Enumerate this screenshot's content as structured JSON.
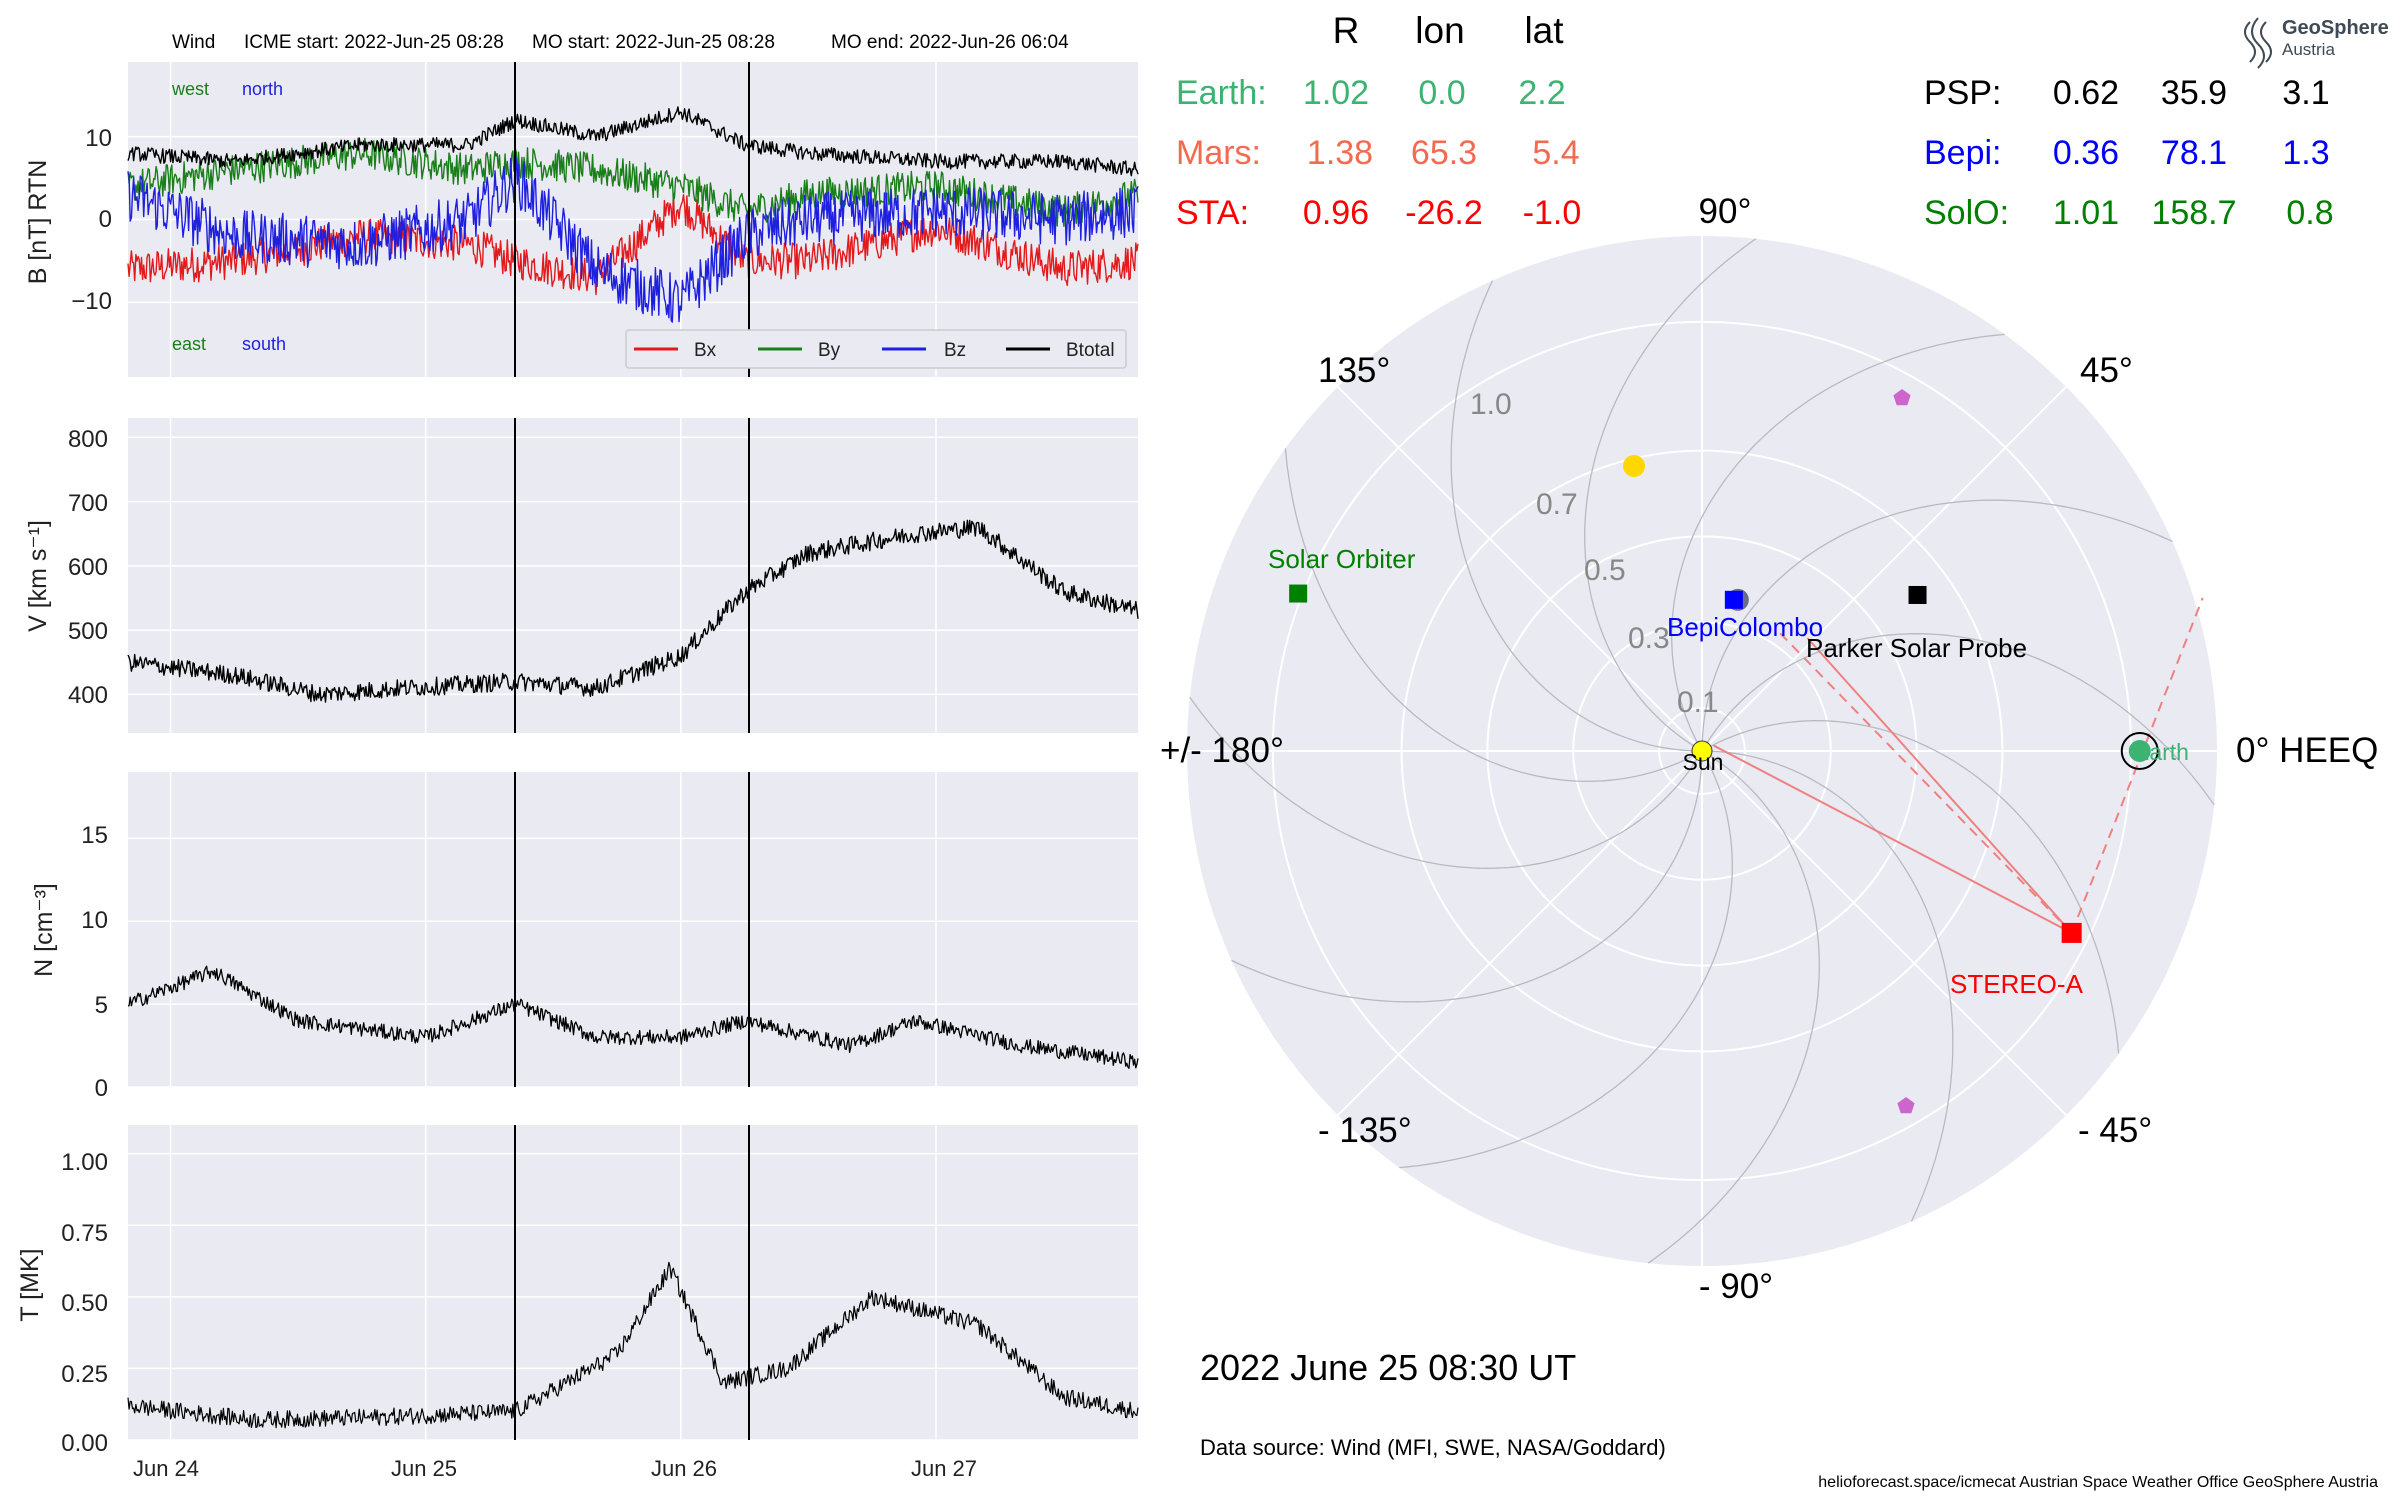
{
  "colors": {
    "panel_bg": "#eaeaf2",
    "grid": "#ffffff",
    "bx": "#e31a1c",
    "by": "#1a7f1a",
    "bz": "#1f1fe0",
    "btotal": "#000000",
    "earth": "#3cb371",
    "mars": "#f26a4f",
    "sta": "#ff0000",
    "psp": "#000000",
    "bepi": "#0000ff",
    "solo": "#008000",
    "sun": "#ffff00",
    "mercury": "#6b6b8a",
    "venus": "#ffd700",
    "marker_pink": "#cc66cc"
  },
  "header": {
    "spacecraft": "Wind",
    "icme_start": "ICME start: 2022-Jun-25 08:28",
    "mo_start": "MO start: 2022-Jun-25 08:28",
    "mo_end": "MO end: 2022-Jun-26 06:04"
  },
  "panels": {
    "b": {
      "ylabel": "B [nT] RTN",
      "west": "west",
      "north": "north",
      "east": "east",
      "south": "south"
    },
    "v": {
      "ylabel": "V [km s⁻¹]"
    },
    "n": {
      "ylabel": "N [cm⁻³]"
    },
    "t": {
      "ylabel": "T [MK]"
    }
  },
  "legend": [
    "Bx",
    "By",
    "Bz",
    "Btotal"
  ],
  "positions": {
    "headers": [
      "R",
      "lon",
      "lat"
    ],
    "rows_left": [
      {
        "name": "Earth:",
        "r": "1.02",
        "lon": "0.0",
        "lat": "2.2"
      },
      {
        "name": "Mars:",
        "r": "1.38",
        "lon": "65.3",
        "lat": "5.4"
      },
      {
        "name": "STA:",
        "r": "0.96",
        "lon": "-26.2",
        "lat": "-1.0"
      }
    ],
    "rows_right": [
      {
        "name": "PSP:",
        "r": "0.62",
        "lon": "35.9",
        "lat": "3.1"
      },
      {
        "name": "Bepi:",
        "r": "0.36",
        "lon": "78.1",
        "lat": "1.3"
      },
      {
        "name": "SolO:",
        "r": "1.01",
        "lon": "158.7",
        "lat": "0.8"
      }
    ]
  },
  "polar": {
    "angle_labels": {
      "a0": "0° HEEQ",
      "a45": "45°",
      "a90": "90°",
      "a135": "135°",
      "a180": "+/- 180°",
      "am135": "- 135°",
      "am90": "- 90°",
      "am45": "- 45°"
    },
    "radius_labels": [
      "0.1",
      "0.3",
      "0.5",
      "0.7",
      "1.0"
    ],
    "object_labels": {
      "sun": "Sun",
      "earth": "Earth",
      "stereo": "STEREO-A",
      "psp": "Parker Solar Probe",
      "bepi": "BepiColombo",
      "solo": "Solar Orbiter"
    }
  },
  "date_text": "2022 June 25  08:30 UT",
  "data_source": "Data source: Wind (MFI, SWE, NASA/Goddard)",
  "footer": "helioforecast.space/icmecat   Austrian Space Weather Office   GeoSphere Austria",
  "logo": {
    "line1": "GeoSphere",
    "line2": "Austria"
  },
  "chart_data": [
    {
      "type": "line",
      "title": "Wind    ICME start: 2022-Jun-25 08:28   MO start: 2022-Jun-25 08:28   MO end: 2022-Jun-26 06:04",
      "ylabel": "B [nT] RTN",
      "x_range": [
        "2022-06-23 20:00",
        "2022-06-27 19:00"
      ],
      "ylim": [
        -19,
        19
      ],
      "yticks": [
        -10,
        0,
        10
      ],
      "xticks": [
        "Jun 24",
        "Jun 25",
        "Jun 26",
        "Jun 27"
      ],
      "event_lines": [
        "2022-06-25 08:28",
        "2022-06-26 06:04"
      ],
      "legend": "bottom-right",
      "series": [
        {
          "name": "Bx",
          "time": [
            "2022-06-23 20:00",
            "2022-06-24 06:00",
            "2022-06-24 18:00",
            "2022-06-25 04:00",
            "2022-06-25 08:28",
            "2022-06-25 16:00",
            "2022-06-26 00:00",
            "2022-06-26 06:04",
            "2022-06-26 12:00",
            "2022-06-27 00:00",
            "2022-06-27 12:00",
            "2022-06-27 19:00"
          ],
          "values": [
            -6,
            -5,
            -2,
            -3,
            -5,
            -7,
            2,
            -5,
            -5,
            -1,
            -6,
            -5
          ]
        },
        {
          "name": "By",
          "time": [
            "2022-06-23 20:00",
            "2022-06-24 06:00",
            "2022-06-24 18:00",
            "2022-06-25 04:00",
            "2022-06-25 08:28",
            "2022-06-25 16:00",
            "2022-06-26 00:00",
            "2022-06-26 06:04",
            "2022-06-26 12:00",
            "2022-06-27 00:00",
            "2022-06-27 12:00",
            "2022-06-27 19:00"
          ],
          "values": [
            4,
            6,
            8,
            6,
            7,
            6,
            4,
            1,
            3,
            4,
            1,
            3
          ]
        },
        {
          "name": "Bz",
          "time": [
            "2022-06-23 20:00",
            "2022-06-24 06:00",
            "2022-06-24 18:00",
            "2022-06-25 04:00",
            "2022-06-25 08:28",
            "2022-06-25 16:00",
            "2022-06-26 00:00",
            "2022-06-26 06:04",
            "2022-06-26 12:00",
            "2022-06-27 00:00",
            "2022-06-27 12:00",
            "2022-06-27 19:00"
          ],
          "values": [
            3,
            -2,
            -3,
            0,
            5,
            -6,
            -10,
            -2,
            0,
            1,
            0,
            1
          ]
        },
        {
          "name": "Btotal",
          "time": [
            "2022-06-23 20:00",
            "2022-06-24 06:00",
            "2022-06-24 18:00",
            "2022-06-25 04:00",
            "2022-06-25 08:28",
            "2022-06-25 16:00",
            "2022-06-26 00:00",
            "2022-06-26 06:04",
            "2022-06-26 12:00",
            "2022-06-27 00:00",
            "2022-06-27 12:00",
            "2022-06-27 19:00"
          ],
          "values": [
            8,
            7,
            9,
            9,
            12,
            10,
            13,
            9,
            8,
            7,
            7,
            6
          ]
        }
      ]
    },
    {
      "type": "line",
      "ylabel": "V [km s⁻¹]",
      "ylim": [
        340,
        830
      ],
      "yticks": [
        400,
        500,
        600,
        700,
        800
      ],
      "series": [
        {
          "name": "V",
          "time": [
            "2022-06-23 20:00",
            "2022-06-24 06:00",
            "2022-06-24 14:00",
            "2022-06-24 22:00",
            "2022-06-25 08:28",
            "2022-06-25 16:00",
            "2022-06-26 00:00",
            "2022-06-26 06:04",
            "2022-06-26 12:00",
            "2022-06-26 22:00",
            "2022-06-27 04:00",
            "2022-06-27 12:00",
            "2022-06-27 19:00"
          ],
          "values": [
            450,
            430,
            400,
            410,
            420,
            410,
            460,
            560,
            620,
            650,
            660,
            560,
            530
          ]
        }
      ]
    },
    {
      "type": "line",
      "ylabel": "N [cm⁻³]",
      "ylim": [
        0,
        19
      ],
      "yticks": [
        0,
        5,
        10,
        15
      ],
      "series": [
        {
          "name": "N",
          "time": [
            "2022-06-23 20:00",
            "2022-06-24 04:00",
            "2022-06-24 12:00",
            "2022-06-25 00:00",
            "2022-06-25 08:28",
            "2022-06-25 16:00",
            "2022-06-26 00:00",
            "2022-06-26 06:04",
            "2022-06-26 16:00",
            "2022-06-26 22:00",
            "2022-06-27 08:00",
            "2022-06-27 19:00"
          ],
          "values": [
            5,
            7,
            4,
            3,
            5,
            3,
            3,
            4,
            2.5,
            4,
            2.5,
            1.5
          ]
        }
      ]
    },
    {
      "type": "line",
      "ylabel": "T [MK]",
      "ylim": [
        0,
        1.1
      ],
      "yticks": [
        0.0,
        0.25,
        0.5,
        0.75,
        1.0
      ],
      "series": [
        {
          "name": "T",
          "time": [
            "2022-06-23 20:00",
            "2022-06-24 08:00",
            "2022-06-24 20:00",
            "2022-06-25 08:28",
            "2022-06-25 18:00",
            "2022-06-25 23:00",
            "2022-06-26 04:00",
            "2022-06-26 10:00",
            "2022-06-26 18:00",
            "2022-06-27 04:00",
            "2022-06-27 12:00",
            "2022-06-27 19:00"
          ],
          "values": [
            0.12,
            0.07,
            0.08,
            0.1,
            0.3,
            0.6,
            0.2,
            0.25,
            0.5,
            0.4,
            0.15,
            0.1
          ]
        }
      ]
    },
    {
      "type": "scatter",
      "coordinate_system": "polar HEEQ (radius AU, longitude deg)",
      "rlim": [
        0,
        1.2
      ],
      "radial_ticks": [
        0.1,
        0.3,
        0.5,
        0.7,
        1.0
      ],
      "points": [
        {
          "name": "Sun",
          "r": 0.0,
          "lon": 0.0
        },
        {
          "name": "Earth",
          "r": 1.02,
          "lon": 0.0
        },
        {
          "name": "STEREO-A",
          "r": 0.96,
          "lon": -26.2
        },
        {
          "name": "Parker Solar Probe",
          "r": 0.62,
          "lon": 35.9
        },
        {
          "name": "BepiColombo",
          "r": 0.36,
          "lon": 78.1
        },
        {
          "name": "Solar Orbiter",
          "r": 1.01,
          "lon": 158.7
        }
      ]
    }
  ]
}
